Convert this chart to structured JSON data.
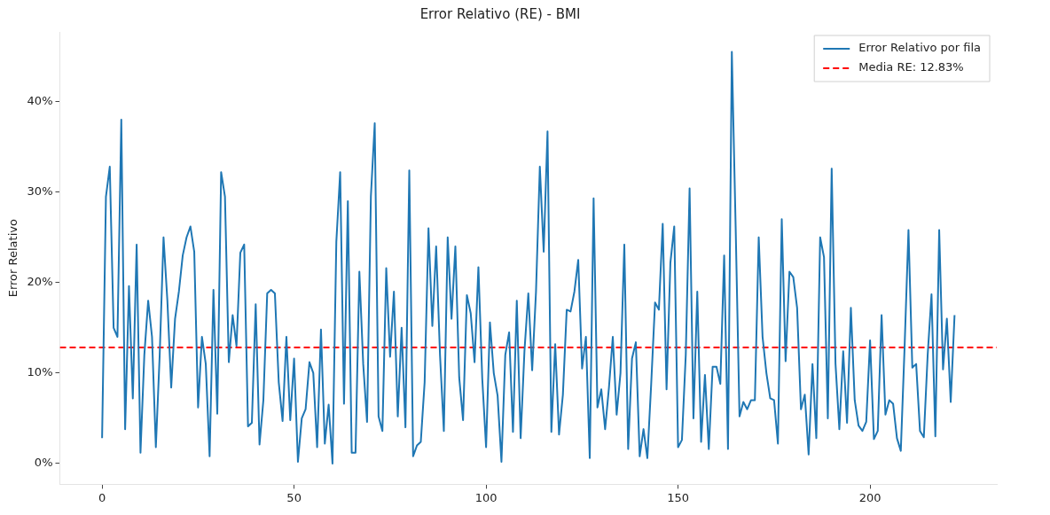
{
  "chart_data": {
    "type": "line",
    "title": "Error Relativo (RE) - BMI",
    "ylabel": "Error Relativo",
    "x": [
      0,
      1,
      2,
      3,
      4,
      5,
      6,
      7,
      8,
      9,
      10,
      11,
      12,
      13,
      14,
      15,
      16,
      17,
      18,
      19,
      20,
      21,
      22,
      23,
      24,
      25,
      26,
      27,
      28,
      29,
      30,
      31,
      32,
      33,
      34,
      35,
      36,
      37,
      38,
      39,
      40,
      41,
      42,
      43,
      44,
      45,
      46,
      47,
      48,
      49,
      50,
      51,
      52,
      53,
      54,
      55,
      56,
      57,
      58,
      59,
      60,
      61,
      62,
      63,
      64,
      65,
      66,
      67,
      68,
      69,
      70,
      71,
      72,
      73,
      74,
      75,
      76,
      77,
      78,
      79,
      80,
      81,
      82,
      83,
      84,
      85,
      86,
      87,
      88,
      89,
      90,
      91,
      92,
      93,
      94,
      95,
      96,
      97,
      98,
      99,
      100,
      101,
      102,
      103,
      104,
      105,
      106,
      107,
      108,
      109,
      110,
      111,
      112,
      113,
      114,
      115,
      116,
      117,
      118,
      119,
      120,
      121,
      122,
      123,
      124,
      125,
      126,
      127,
      128,
      129,
      130,
      131,
      132,
      133,
      134,
      135,
      136,
      137,
      138,
      139,
      140,
      141,
      142,
      143,
      144,
      145,
      146,
      147,
      148,
      149,
      150,
      151,
      152,
      153,
      154,
      155,
      156,
      157,
      158,
      159,
      160,
      161,
      162,
      163,
      164,
      165,
      166,
      167,
      168,
      169,
      170,
      171,
      172,
      173,
      174,
      175,
      176,
      177,
      178,
      179,
      180,
      181,
      182,
      183,
      184,
      185,
      186,
      187,
      188,
      189,
      190,
      191,
      192,
      193,
      194,
      195,
      196,
      197,
      198,
      199,
      200,
      201,
      202,
      203,
      204,
      205,
      206,
      207,
      208,
      209,
      210,
      211,
      212,
      213,
      214,
      215,
      216,
      217,
      218,
      219,
      220,
      221,
      222
    ],
    "series": [
      {
        "name": "Error Relativo por fila",
        "color": "#1f77b4",
        "values": [
          2.8,
          29.5,
          32.8,
          15,
          14,
          38,
          3.8,
          19.6,
          7.2,
          24.2,
          1.2,
          12,
          18,
          14,
          1.8,
          12,
          25,
          18,
          8.4,
          16,
          19,
          23,
          25,
          26.2,
          23.4,
          6.2,
          14,
          11,
          0.8,
          19.2,
          5.5,
          32.2,
          29.5,
          11.2,
          16.4,
          13,
          23.3,
          24.2,
          4.1,
          4.5,
          17.6,
          2.1,
          7,
          18.8,
          19.2,
          18.8,
          9,
          4.7,
          14,
          4.8,
          11.6,
          0.2,
          5,
          6,
          11.2,
          10,
          1.8,
          14.8,
          2.2,
          6.5,
          0,
          24.5,
          32.2,
          6.6,
          29,
          1.2,
          1.2,
          21.2,
          11,
          4.6,
          29.5,
          37.6,
          5.2,
          3.6,
          21.6,
          11.8,
          19,
          5.2,
          15,
          4,
          32.4,
          0.8,
          2,
          2.4,
          9,
          26,
          15.2,
          24,
          12,
          3.6,
          25,
          16,
          24,
          9.5,
          4.8,
          18.6,
          16.6,
          11.2,
          21.7,
          9.4,
          1.8,
          15.6,
          10,
          7.5,
          0.2,
          12,
          14.5,
          3.5,
          18,
          2.8,
          12.5,
          18.8,
          10.3,
          19,
          32.8,
          23.4,
          36.7,
          3.5,
          13.2,
          3.2,
          7.6,
          17,
          16.8,
          19,
          22.5,
          10.5,
          14,
          0.6,
          29.3,
          6.2,
          8.2,
          3.8,
          8.4,
          14,
          5.4,
          10,
          24.2,
          1.6,
          11.6,
          13.4,
          0.8,
          3.8,
          0.6,
          8.8,
          17.8,
          17,
          26.5,
          8.2,
          22.2,
          26.2,
          1.8,
          2.6,
          12,
          30.4,
          5,
          19,
          2.4,
          9.8,
          1.6,
          10.7,
          10.7,
          8.8,
          23,
          1.6,
          45.5,
          26,
          5.2,
          6.8,
          6,
          7,
          7,
          25,
          14,
          10,
          7.2,
          7,
          2.2,
          27,
          11.3,
          21.2,
          20.6,
          17.2,
          6,
          7.6,
          1,
          11,
          2.8,
          25,
          22.8,
          5,
          32.6,
          11,
          3.8,
          12.4,
          4.5,
          17.2,
          7,
          4.2,
          3.6,
          4.6,
          13.6,
          2.7,
          3.6,
          16.4,
          5.4,
          7,
          6.6,
          2.8,
          1.4,
          13,
          25.8,
          10.6,
          11,
          3.6,
          2.9,
          12,
          18.7,
          3,
          25.8,
          10.4,
          16,
          6.8,
          16.4
        ]
      }
    ],
    "ref_lines": [
      {
        "axis": "y",
        "value": 12.83,
        "label": "Media RE: 12.83%",
        "color": "#ff0000",
        "line_style": "dashed"
      }
    ],
    "xlim": [
      -11,
      233
    ],
    "xticks": [
      0,
      50,
      100,
      150,
      200
    ],
    "ylim": [
      -2.3,
      47.7
    ],
    "yticks": [
      {
        "value": 0,
        "label": "0%"
      },
      {
        "value": 10,
        "label": "10%"
      },
      {
        "value": 20,
        "label": "20%"
      },
      {
        "value": 30,
        "label": "30%"
      },
      {
        "value": 40,
        "label": "40%"
      }
    ],
    "legend": "top right",
    "line_style": "solid",
    "marker": "none"
  }
}
